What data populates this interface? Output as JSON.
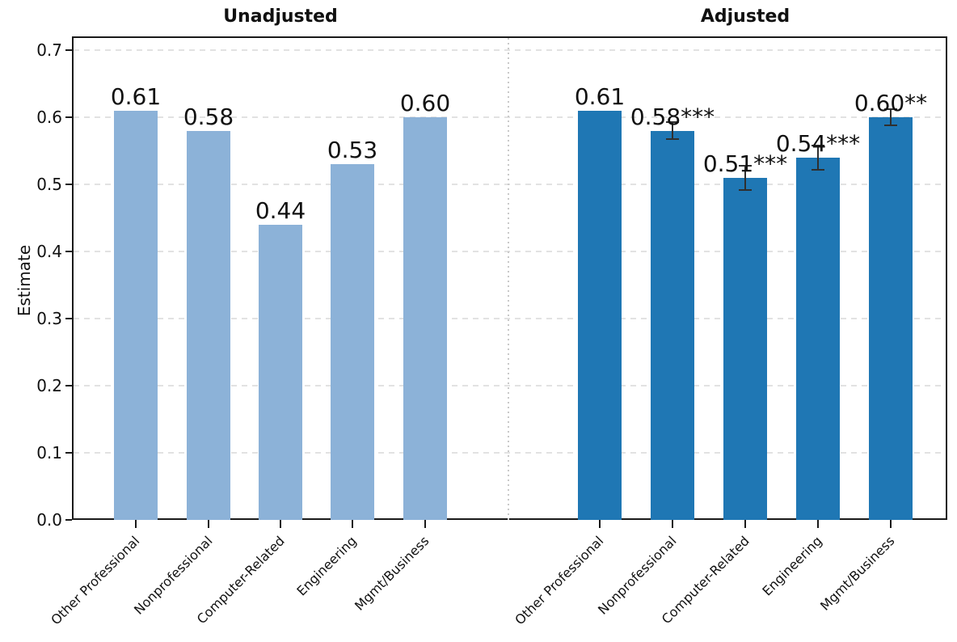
{
  "figure": {
    "ylabel": "Estimate",
    "ytick_labels": [
      "0.0",
      "0.1",
      "0.2",
      "0.3",
      "0.4",
      "0.5",
      "0.6",
      "0.7"
    ],
    "background": "#ffffff",
    "colors": {
      "unadjusted_bar": "#8cb2d8",
      "adjusted_bar": "#1f77b4",
      "gridline": "#e2e2e2",
      "axis": "#1a1a1a",
      "errorbar": "#2f2f2f",
      "panel_divider": "#c9c9c9",
      "text": "#111111"
    }
  },
  "chart_data": [
    {
      "type": "bar",
      "title": "Unadjusted",
      "categories": [
        "Other Professional",
        "Nonprofessional",
        "Computer-Related",
        "Engineering",
        "Mgmt/Business"
      ],
      "values": [
        0.61,
        0.58,
        0.44,
        0.53,
        0.6
      ],
      "bar_labels": [
        "0.61",
        "0.58",
        "0.44",
        "0.53",
        "0.60"
      ],
      "errors": [
        null,
        null,
        null,
        null,
        null
      ],
      "xlabel": "",
      "ylabel": "Estimate",
      "ylim": [
        0,
        0.72
      ],
      "grid": true,
      "legend": false,
      "bar_color": "#8cb2d8"
    },
    {
      "type": "bar",
      "title": "Adjusted",
      "categories": [
        "Other Professional",
        "Nonprofessional",
        "Computer-Related",
        "Engineering",
        "Mgmt/Business"
      ],
      "values": [
        0.61,
        0.58,
        0.51,
        0.54,
        0.6
      ],
      "bar_labels": [
        "0.61",
        "0.58***",
        "0.51***",
        "0.54***",
        "0.60**"
      ],
      "errors": [
        null,
        0.013,
        0.018,
        0.018,
        0.012
      ],
      "xlabel": "",
      "ylabel": "Estimate",
      "ylim": [
        0,
        0.72
      ],
      "grid": true,
      "legend": false,
      "bar_color": "#1f77b4"
    }
  ]
}
